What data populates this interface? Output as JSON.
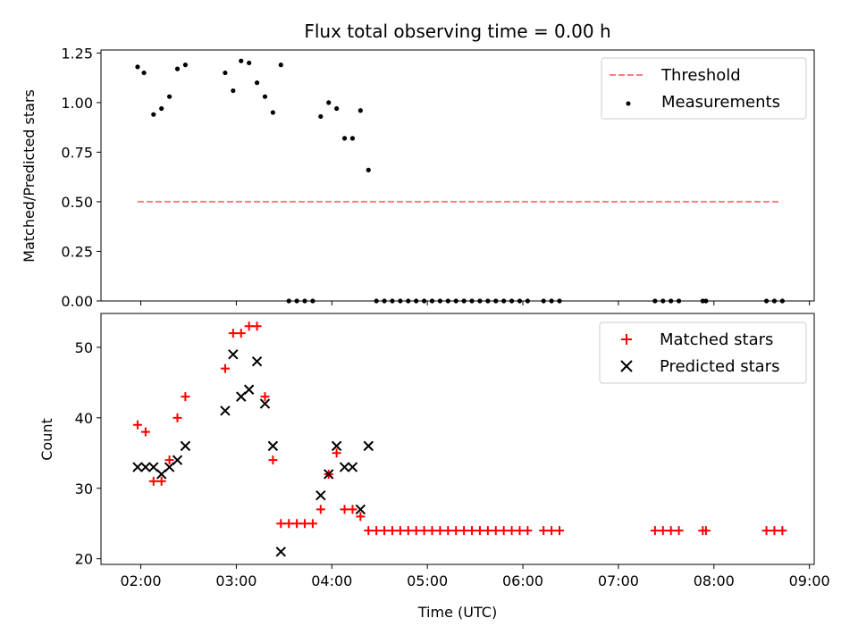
{
  "colors": {
    "matched": "#ff0000",
    "predicted": "#000000",
    "threshold": "#ff7f7f",
    "measurement": "#000000"
  },
  "chart_data": [
    {
      "type": "scatter",
      "title": "Flux total observing time = 0.00 h",
      "ylabel": "Matched/Predicted stars",
      "xlim": [
        "01:35",
        "09:03"
      ],
      "ylim": [
        0,
        1.265
      ],
      "yticks": [
        "0.00",
        "0.25",
        "0.50",
        "0.75",
        "1.00",
        "1.25"
      ],
      "legend_position": "upper right",
      "legend": [
        "Threshold",
        "Measurements"
      ],
      "threshold": {
        "name": "Threshold",
        "y": 0.5,
        "x_start": "01:58",
        "x_end": "08:42",
        "style": "dashed"
      },
      "series": [
        {
          "name": "Measurements",
          "points": [
            [
              "01:58",
              1.18
            ],
            [
              "02:02",
              1.15
            ],
            [
              "02:08",
              0.94
            ],
            [
              "02:13",
              0.97
            ],
            [
              "02:18",
              1.03
            ],
            [
              "02:23",
              1.17
            ],
            [
              "02:28",
              1.19
            ],
            [
              "02:53",
              1.15
            ],
            [
              "02:58",
              1.06
            ],
            [
              "03:03",
              1.21
            ],
            [
              "03:08",
              1.2
            ],
            [
              "03:13",
              1.1
            ],
            [
              "03:18",
              1.03
            ],
            [
              "03:23",
              0.95
            ],
            [
              "03:28",
              1.19
            ],
            [
              "03:33",
              0
            ],
            [
              "03:38",
              0
            ],
            [
              "03:43",
              0
            ],
            [
              "03:48",
              0
            ],
            [
              "03:53",
              0.93
            ],
            [
              "03:58",
              1.0
            ],
            [
              "04:03",
              0.97
            ],
            [
              "04:08",
              0.82
            ],
            [
              "04:13",
              0.82
            ],
            [
              "04:18",
              0.96
            ],
            [
              "04:23",
              0.66
            ],
            [
              "04:28",
              0
            ],
            [
              "04:33",
              0
            ],
            [
              "04:38",
              0
            ],
            [
              "04:43",
              0
            ],
            [
              "04:48",
              0
            ],
            [
              "04:53",
              0
            ],
            [
              "04:58",
              0
            ],
            [
              "05:03",
              0
            ],
            [
              "05:08",
              0
            ],
            [
              "05:13",
              0
            ],
            [
              "05:18",
              0
            ],
            [
              "05:23",
              0
            ],
            [
              "05:28",
              0
            ],
            [
              "05:33",
              0
            ],
            [
              "05:38",
              0
            ],
            [
              "05:43",
              0
            ],
            [
              "05:48",
              0
            ],
            [
              "05:53",
              0
            ],
            [
              "05:58",
              0
            ],
            [
              "06:03",
              0
            ],
            [
              "06:13",
              0
            ],
            [
              "06:18",
              0
            ],
            [
              "06:23",
              0
            ],
            [
              "07:23",
              0
            ],
            [
              "07:28",
              0
            ],
            [
              "07:33",
              0
            ],
            [
              "07:38",
              0
            ],
            [
              "07:53",
              0
            ],
            [
              "07:55",
              0
            ],
            [
              "08:33",
              0
            ],
            [
              "08:38",
              0
            ],
            [
              "08:43",
              0
            ]
          ]
        }
      ]
    },
    {
      "type": "scatter",
      "xlabel": "Time (UTC)",
      "ylabel": "Count",
      "xlim": [
        "01:35",
        "09:03"
      ],
      "ylim": [
        19.2,
        54.8
      ],
      "xticks": [
        "02:00",
        "03:00",
        "04:00",
        "05:00",
        "06:00",
        "07:00",
        "08:00",
        "09:00"
      ],
      "yticks": [
        "20",
        "30",
        "40",
        "50"
      ],
      "legend_position": "upper right",
      "legend": [
        "Matched stars",
        "Predicted stars"
      ],
      "series": [
        {
          "name": "Matched stars",
          "marker": "+",
          "points": [
            [
              "01:58",
              39
            ],
            [
              "02:03",
              38
            ],
            [
              "02:08",
              31
            ],
            [
              "02:13",
              31
            ],
            [
              "02:18",
              34
            ],
            [
              "02:23",
              40
            ],
            [
              "02:28",
              43
            ],
            [
              "02:53",
              47
            ],
            [
              "02:58",
              52
            ],
            [
              "03:03",
              52
            ],
            [
              "03:08",
              53
            ],
            [
              "03:13",
              53
            ],
            [
              "03:18",
              43
            ],
            [
              "03:23",
              34
            ],
            [
              "03:28",
              25
            ],
            [
              "03:33",
              25
            ],
            [
              "03:38",
              25
            ],
            [
              "03:43",
              25
            ],
            [
              "03:48",
              25
            ],
            [
              "03:53",
              27
            ],
            [
              "03:58",
              32
            ],
            [
              "04:03",
              35
            ],
            [
              "04:08",
              27
            ],
            [
              "04:13",
              27
            ],
            [
              "04:18",
              26
            ],
            [
              "04:23",
              24
            ],
            [
              "04:28",
              24
            ],
            [
              "04:33",
              24
            ],
            [
              "04:38",
              24
            ],
            [
              "04:43",
              24
            ],
            [
              "04:48",
              24
            ],
            [
              "04:53",
              24
            ],
            [
              "04:58",
              24
            ],
            [
              "05:03",
              24
            ],
            [
              "05:08",
              24
            ],
            [
              "05:13",
              24
            ],
            [
              "05:18",
              24
            ],
            [
              "05:23",
              24
            ],
            [
              "05:28",
              24
            ],
            [
              "05:33",
              24
            ],
            [
              "05:38",
              24
            ],
            [
              "05:43",
              24
            ],
            [
              "05:48",
              24
            ],
            [
              "05:53",
              24
            ],
            [
              "05:58",
              24
            ],
            [
              "06:03",
              24
            ],
            [
              "06:13",
              24
            ],
            [
              "06:18",
              24
            ],
            [
              "06:23",
              24
            ],
            [
              "07:23",
              24
            ],
            [
              "07:28",
              24
            ],
            [
              "07:33",
              24
            ],
            [
              "07:38",
              24
            ],
            [
              "07:53",
              24
            ],
            [
              "07:55",
              24
            ],
            [
              "08:33",
              24
            ],
            [
              "08:38",
              24
            ],
            [
              "08:43",
              24
            ]
          ]
        },
        {
          "name": "Predicted stars",
          "marker": "x",
          "points": [
            [
              "01:58",
              33
            ],
            [
              "02:03",
              33
            ],
            [
              "02:08",
              33
            ],
            [
              "02:13",
              32
            ],
            [
              "02:18",
              33
            ],
            [
              "02:23",
              34
            ],
            [
              "02:28",
              36
            ],
            [
              "02:53",
              41
            ],
            [
              "02:58",
              49
            ],
            [
              "03:03",
              43
            ],
            [
              "03:08",
              44
            ],
            [
              "03:13",
              48
            ],
            [
              "03:18",
              42
            ],
            [
              "03:23",
              36
            ],
            [
              "03:28",
              21
            ],
            [
              "03:53",
              29
            ],
            [
              "03:58",
              32
            ],
            [
              "04:03",
              36
            ],
            [
              "04:08",
              33
            ],
            [
              "04:13",
              33
            ],
            [
              "04:18",
              27
            ],
            [
              "04:23",
              36
            ]
          ]
        }
      ]
    }
  ]
}
